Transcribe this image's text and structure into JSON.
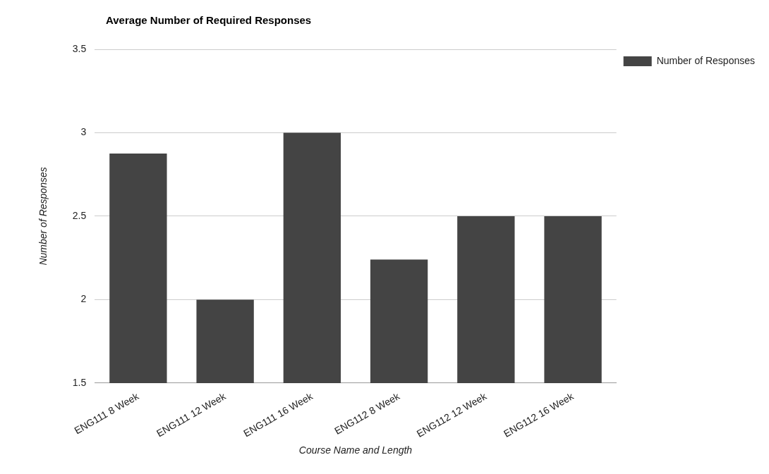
{
  "chart_data": {
    "type": "bar",
    "title": "Average Number of Required Responses",
    "xlabel": "Course Name and Length",
    "ylabel": "Number of Responses",
    "categories": [
      "ENG111 8 Week",
      "ENG111 12 Week",
      "ENG111 16 Week",
      "ENG112 8 Week",
      "ENG112 12 Week",
      "ENG112 16 Week"
    ],
    "series": [
      {
        "name": "Number of Responses",
        "color": "#444444",
        "values": [
          2.875,
          2.0,
          3.0,
          2.24,
          2.5,
          2.5
        ]
      }
    ],
    "ylim": [
      1.5,
      3.5
    ],
    "yticks": [
      1.5,
      2,
      2.5,
      3,
      3.5
    ],
    "grid": "y",
    "legend": "top right"
  }
}
